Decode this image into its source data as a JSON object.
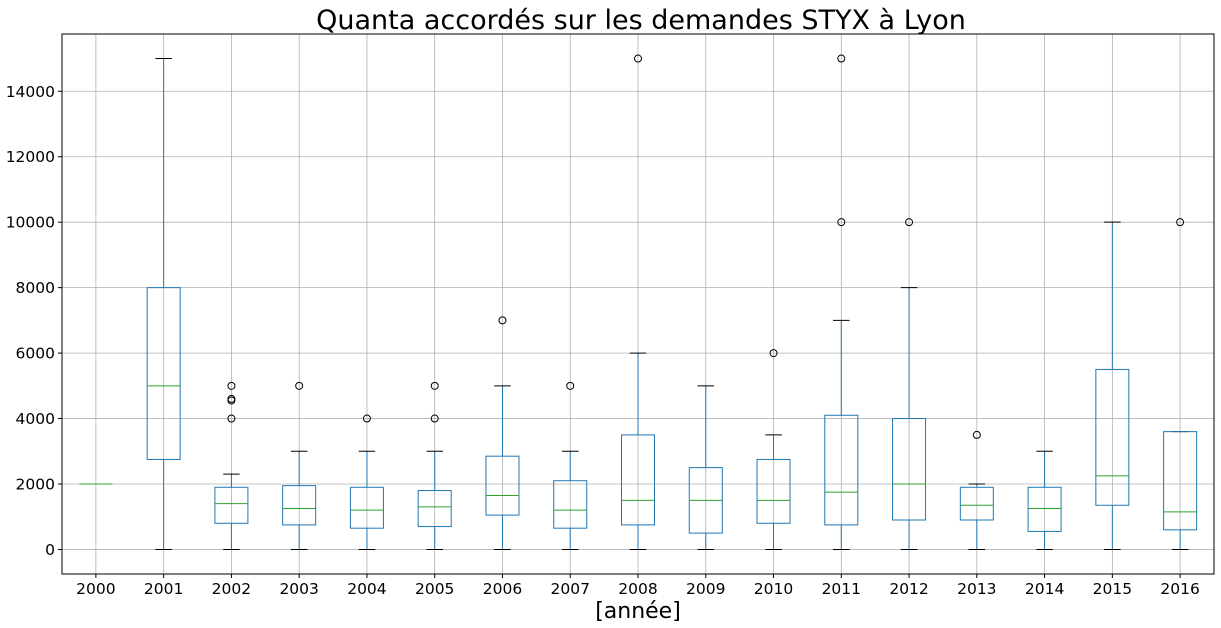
{
  "chart_data": {
    "type": "box",
    "title": "Quanta accordés sur les demandes STYX à Lyon",
    "xlabel": "[année]",
    "ylabel": "",
    "ylim": [
      -750,
      15750
    ],
    "yticks": [
      0,
      2000,
      4000,
      6000,
      8000,
      10000,
      12000,
      14000
    ],
    "grid": true,
    "categories": [
      "2000",
      "2001",
      "2002",
      "2003",
      "2004",
      "2005",
      "2006",
      "2007",
      "2008",
      "2009",
      "2010",
      "2011",
      "2012",
      "2013",
      "2014",
      "2015",
      "2016"
    ],
    "boxes": [
      {
        "category": "2000",
        "whisker_low": 2000,
        "q1": 2000,
        "median": 2000,
        "q3": 2000,
        "whisker_high": 2000,
        "fliers": []
      },
      {
        "category": "2001",
        "whisker_low": 0,
        "q1": 2750,
        "median": 5000,
        "q3": 8000,
        "whisker_high": 15000,
        "fliers": []
      },
      {
        "category": "2002",
        "whisker_low": 0,
        "q1": 800,
        "median": 1400,
        "q3": 1900,
        "whisker_high": 2300,
        "fliers": [
          4000,
          4550,
          4600,
          5000
        ]
      },
      {
        "category": "2003",
        "whisker_low": 0,
        "q1": 750,
        "median": 1250,
        "q3": 1950,
        "whisker_high": 3000,
        "fliers": [
          5000
        ]
      },
      {
        "category": "2004",
        "whisker_low": 0,
        "q1": 650,
        "median": 1200,
        "q3": 1900,
        "whisker_high": 3000,
        "fliers": [
          4000
        ]
      },
      {
        "category": "2005",
        "whisker_low": 0,
        "q1": 700,
        "median": 1300,
        "q3": 1800,
        "whisker_high": 3000,
        "fliers": [
          4000,
          5000
        ]
      },
      {
        "category": "2006",
        "whisker_low": 0,
        "q1": 1050,
        "median": 1650,
        "q3": 2850,
        "whisker_high": 5000,
        "fliers": [
          7000
        ]
      },
      {
        "category": "2007",
        "whisker_low": 0,
        "q1": 650,
        "median": 1200,
        "q3": 2100,
        "whisker_high": 3000,
        "fliers": [
          5000
        ]
      },
      {
        "category": "2008",
        "whisker_low": 0,
        "q1": 750,
        "median": 1500,
        "q3": 3500,
        "whisker_high": 6000,
        "fliers": [
          15000
        ]
      },
      {
        "category": "2009",
        "whisker_low": 0,
        "q1": 500,
        "median": 1500,
        "q3": 2500,
        "whisker_high": 5000,
        "fliers": []
      },
      {
        "category": "2010",
        "whisker_low": 0,
        "q1": 800,
        "median": 1500,
        "q3": 2750,
        "whisker_high": 3500,
        "fliers": [
          6000
        ]
      },
      {
        "category": "2011",
        "whisker_low": 0,
        "q1": 750,
        "median": 1750,
        "q3": 4100,
        "whisker_high": 7000,
        "fliers": [
          10000,
          15000
        ]
      },
      {
        "category": "2012",
        "whisker_low": 0,
        "q1": 900,
        "median": 2000,
        "q3": 4000,
        "whisker_high": 8000,
        "fliers": [
          10000
        ]
      },
      {
        "category": "2013",
        "whisker_low": 0,
        "q1": 900,
        "median": 1350,
        "q3": 1900,
        "whisker_high": 2000,
        "fliers": [
          3500
        ]
      },
      {
        "category": "2014",
        "whisker_low": 0,
        "q1": 550,
        "median": 1250,
        "q3": 1900,
        "whisker_high": 3000,
        "fliers": []
      },
      {
        "category": "2015",
        "whisker_low": 0,
        "q1": 1350,
        "median": 2250,
        "q3": 5500,
        "whisker_high": 10000,
        "fliers": []
      },
      {
        "category": "2016",
        "whisker_low": 0,
        "q1": 600,
        "median": 1150,
        "q3": 3600,
        "whisker_high": 3600,
        "fliers": [
          10000
        ]
      }
    ],
    "colors": {
      "box": "#1f77b4",
      "median": "#2ca02c",
      "grid": "#b0b0b0",
      "cap": "#000000"
    }
  }
}
